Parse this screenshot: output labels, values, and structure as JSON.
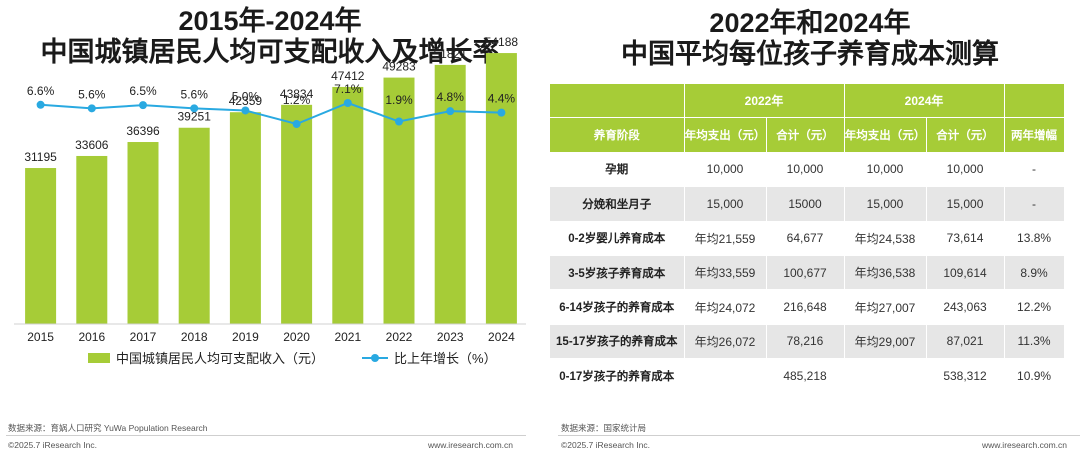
{
  "left": {
    "title_line1": "2015年-2024年",
    "title_line2": "中国城镇居民人均可支配收入及增长率",
    "source": "数据来源：育娲人口研究 YuWa Population Research",
    "copyright": "©2025.7 iResearch Inc.",
    "site": "www.iresearch.com.cn"
  },
  "chart_data": {
    "type": "bar",
    "categories": [
      "2015",
      "2016",
      "2017",
      "2018",
      "2019",
      "2020",
      "2021",
      "2022",
      "2023",
      "2024"
    ],
    "series": [
      {
        "name": "中国城镇居民人均可支配收入（元）",
        "type": "bar",
        "color": "#a6cc37",
        "values": [
          31195,
          33606,
          36396,
          39251,
          42359,
          43834,
          47412,
          49283,
          51821,
          54188
        ],
        "labels": [
          "31195",
          "33606",
          "36396",
          "39251",
          "42359",
          "43834",
          "47412",
          "49283",
          "51821",
          "54188"
        ]
      },
      {
        "name": "比上年增长（%）",
        "type": "line",
        "color": "#29a9e1",
        "values": [
          6.6,
          5.6,
          6.5,
          5.6,
          5.0,
          1.2,
          7.1,
          1.9,
          4.8,
          4.4
        ],
        "labels": [
          "6.6%",
          "5.6%",
          "6.5%",
          "5.6%",
          "5.0%",
          "1.2%",
          "7.1%",
          "1.9%",
          "4.8%",
          "4.4%"
        ]
      }
    ],
    "legend": "bottom",
    "grid": false
  },
  "right": {
    "title_line1": "2022年和2024年",
    "title_line2": "中国平均每位孩子养育成本测算",
    "source": "数据来源：国家统计局",
    "copyright": "©2025.7 iResearch Inc.",
    "site": "www.iresearch.com.cn",
    "table": {
      "year_2022": "2022年",
      "year_2024": "2024年",
      "headers": [
        "养育阶段",
        "年均支出（元）",
        "合计（元）",
        "年均支出（元）",
        "合计（元）",
        "两年增幅"
      ],
      "rows": [
        [
          "孕期",
          "10,000",
          "10,000",
          "10,000",
          "10,000",
          "-"
        ],
        [
          "分娩和坐月子",
          "15,000",
          "15000",
          "15,000",
          "15,000",
          "-"
        ],
        [
          "0-2岁婴儿养育成本",
          "年均21,559",
          "64,677",
          "年均24,538",
          "73,614",
          "13.8%"
        ],
        [
          "3-5岁孩子养育成本",
          "年均33,559",
          "100,677",
          "年均36,538",
          "109,614",
          "8.9%"
        ],
        [
          "6-14岁孩子的养育成本",
          "年均24,072",
          "216,648",
          "年均27,007",
          "243,063",
          "12.2%"
        ],
        [
          "15-17岁孩子的养育成本",
          "年均26,072",
          "78,216",
          "年均29,007",
          "87,021",
          "11.3%"
        ],
        [
          "0-17岁孩子的养育成本",
          "",
          "485,218",
          "",
          "538,312",
          "10.9%"
        ]
      ]
    }
  }
}
